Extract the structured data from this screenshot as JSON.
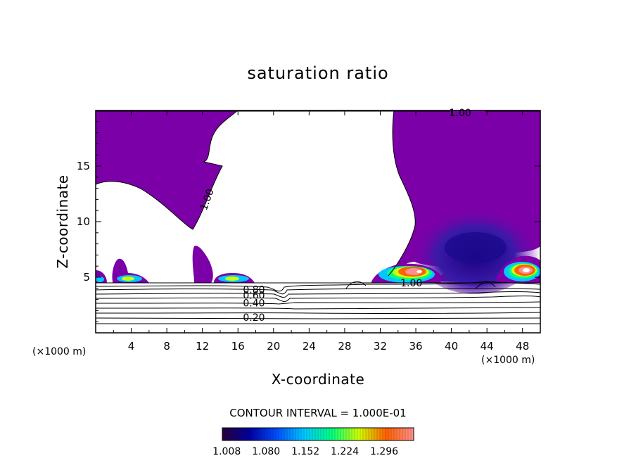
{
  "chart_data": {
    "type": "contour",
    "title": "saturation ratio",
    "xlabel": "X-coordinate",
    "ylabel": "Z-coordinate",
    "x_unit": "(×1000 m)",
    "z_unit": "(×1000 m)",
    "xlim": [
      0,
      50
    ],
    "ylim": [
      0,
      20
    ],
    "x_ticks": [
      4,
      8,
      12,
      16,
      20,
      24,
      28,
      32,
      36,
      40,
      44,
      48
    ],
    "x_tick_labels": [
      "4",
      "8",
      "12",
      "16",
      "20",
      "24",
      "28",
      "32",
      "36",
      "40",
      "44",
      "48"
    ],
    "y_ticks": [
      5,
      10,
      15
    ],
    "y_tick_labels": [
      "5",
      "10",
      "15"
    ],
    "contour_labels": [
      {
        "text": "1.00",
        "x": 41.0,
        "z": 19.8
      },
      {
        "text": "1.00",
        "x": 12.5,
        "z": 12.0
      },
      {
        "text": "1.00",
        "x": 35.5,
        "z": 4.5
      },
      {
        "text": "0.80",
        "x": 17.8,
        "z": 3.9
      },
      {
        "text": "0.60",
        "x": 17.8,
        "z": 3.4
      },
      {
        "text": "0.40",
        "x": 17.8,
        "z": 2.7
      },
      {
        "text": "0.20",
        "x": 17.8,
        "z": 1.4
      }
    ],
    "contour_interval_text": "CONTOUR INTERVAL = 1.000E-01",
    "colorbar": {
      "min": 1.0,
      "max": 1.35,
      "tick_values": [
        1.008,
        1.08,
        1.152,
        1.224,
        1.296
      ],
      "tick_labels": [
        "1.008",
        "1.080",
        "1.152",
        "1.224",
        "1.296"
      ],
      "colors": [
        "#2a003a",
        "#0000a0",
        "#0050ff",
        "#00c8ff",
        "#00ff80",
        "#d0ff00",
        "#ff6000",
        "#ff9090"
      ]
    },
    "fill_color_supersaturated": "#7b00a8"
  }
}
